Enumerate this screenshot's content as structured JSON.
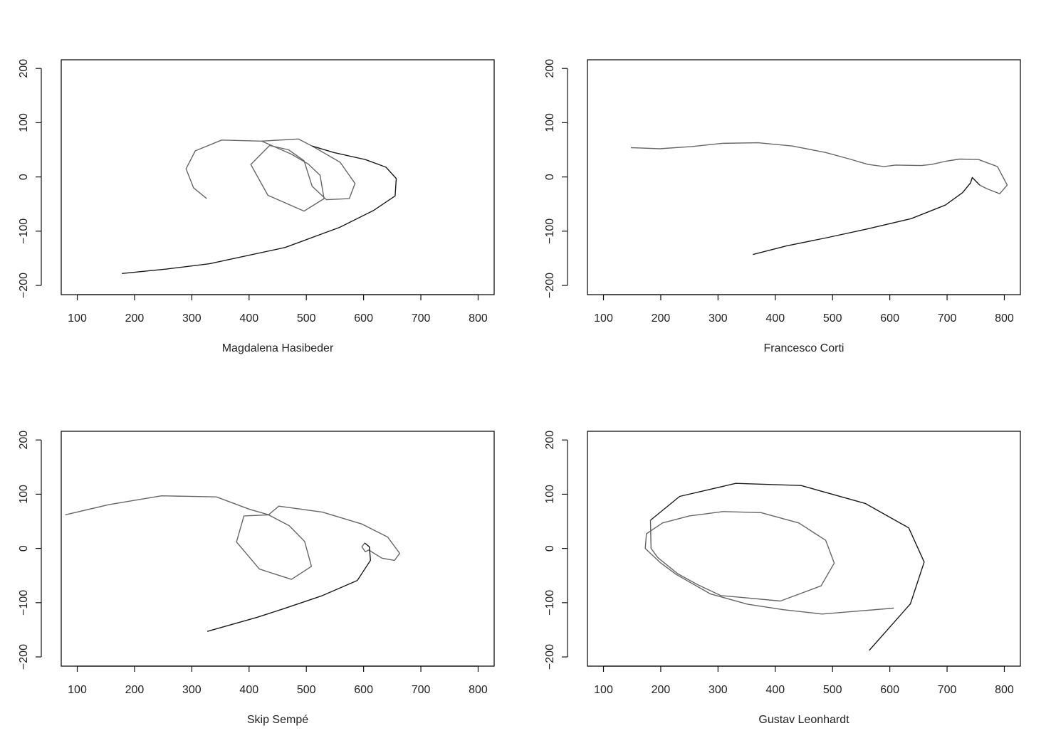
{
  "chart_data": [
    {
      "type": "line",
      "xlabel": "Magdalena Hasibeder",
      "xlim": [
        72,
        828
      ],
      "ylim": [
        -217,
        216
      ],
      "xticks": [
        100,
        200,
        300,
        400,
        500,
        600,
        700,
        800
      ],
      "yticks": [
        -200,
        -100,
        0,
        100,
        200
      ],
      "grid": false,
      "series": [
        {
          "color": "#666666",
          "points": [
            [
              326,
              -40
            ],
            [
              303,
              -20
            ],
            [
              290,
              15
            ],
            [
              306,
              48
            ],
            [
              352,
              68
            ],
            [
              422,
              66
            ],
            [
              486,
              70
            ],
            [
              510,
              57
            ],
            [
              559,
              27
            ],
            [
              585,
              -12
            ],
            [
              575,
              -40
            ],
            [
              535,
              -42
            ],
            [
              510,
              -17
            ],
            [
              496,
              30
            ],
            [
              469,
              50
            ],
            [
              436,
              58
            ],
            [
              403,
              23
            ],
            [
              433,
              -34
            ],
            [
              496,
              -63
            ],
            [
              531,
              -40
            ],
            [
              524,
              3
            ],
            [
              503,
              24
            ],
            [
              474,
              42
            ],
            [
              422,
              66
            ]
          ]
        },
        {
          "color": "#1a1a1a",
          "points": [
            [
              510,
              57
            ],
            [
              548,
              45
            ],
            [
              603,
              32
            ],
            [
              639,
              18
            ],
            [
              657,
              -3
            ],
            [
              655,
              -35
            ],
            [
              617,
              -62
            ],
            [
              558,
              -93
            ],
            [
              463,
              -130
            ],
            [
              331,
              -160
            ],
            [
              254,
              -170
            ],
            [
              178,
              -178
            ]
          ]
        }
      ]
    },
    {
      "type": "line",
      "xlabel": "Francesco Corti",
      "xlim": [
        72,
        828
      ],
      "ylim": [
        -217,
        216
      ],
      "xticks": [
        100,
        200,
        300,
        400,
        500,
        600,
        700,
        800
      ],
      "yticks": [
        -200,
        -100,
        0,
        100,
        200
      ],
      "grid": false,
      "series": [
        {
          "color": "#666666",
          "points": [
            [
              148,
              54
            ],
            [
              198,
              52
            ],
            [
              254,
              56
            ],
            [
              307,
              62
            ],
            [
              370,
              63
            ],
            [
              430,
              57
            ],
            [
              488,
              45
            ],
            [
              530,
              33
            ],
            [
              562,
              23
            ],
            [
              590,
              19
            ],
            [
              610,
              22
            ],
            [
              655,
              21
            ],
            [
              673,
              23
            ],
            [
              698,
              29
            ],
            [
              722,
              33
            ],
            [
              755,
              32
            ],
            [
              788,
              19
            ],
            [
              805,
              -15
            ],
            [
              792,
              -31
            ],
            [
              770,
              -22
            ],
            [
              757,
              -15
            ]
          ]
        },
        {
          "color": "#1a1a1a",
          "points": [
            [
              757,
              -15
            ],
            [
              744,
              -1
            ],
            [
              741,
              -11
            ],
            [
              727,
              -29
            ],
            [
              697,
              -52
            ],
            [
              637,
              -77
            ],
            [
              560,
              -96
            ],
            [
              490,
              -112
            ],
            [
              420,
              -127
            ],
            [
              361,
              -143
            ]
          ]
        }
      ]
    },
    {
      "type": "line",
      "xlabel": "Skip Sempé",
      "xlim": [
        72,
        828
      ],
      "ylim": [
        -217,
        216
      ],
      "xticks": [
        100,
        200,
        300,
        400,
        500,
        600,
        700,
        800
      ],
      "yticks": [
        -200,
        -100,
        0,
        100,
        200
      ],
      "grid": false,
      "series": [
        {
          "color": "#666666",
          "points": [
            [
              79,
              62
            ],
            [
              156,
              81
            ],
            [
              247,
              97
            ],
            [
              343,
              95
            ],
            [
              401,
              72
            ],
            [
              435,
              62
            ],
            [
              391,
              60
            ],
            [
              378,
              12
            ],
            [
              418,
              -38
            ],
            [
              474,
              -57
            ],
            [
              509,
              -33
            ],
            [
              497,
              13
            ],
            [
              470,
              42
            ],
            [
              434,
              62
            ],
            [
              452,
              78
            ],
            [
              528,
              67
            ],
            [
              597,
              45
            ],
            [
              642,
              21
            ],
            [
              663,
              -9
            ],
            [
              654,
              -22
            ],
            [
              632,
              -18
            ],
            [
              609,
              -3
            ],
            [
              603,
              -6
            ],
            [
              597,
              3
            ],
            [
              602,
              10
            ]
          ]
        },
        {
          "color": "#1a1a1a",
          "points": [
            [
              602,
              10
            ],
            [
              610,
              3
            ],
            [
              612,
              -22
            ],
            [
              589,
              -59
            ],
            [
              528,
              -87
            ],
            [
              461,
              -111
            ],
            [
              414,
              -127
            ],
            [
              327,
              -153
            ]
          ]
        }
      ]
    },
    {
      "type": "line",
      "xlabel": "Gustav Leonhardt",
      "xlim": [
        72,
        828
      ],
      "ylim": [
        -217,
        216
      ],
      "xticks": [
        100,
        200,
        300,
        400,
        500,
        600,
        700,
        800
      ],
      "yticks": [
        -200,
        -100,
        0,
        100,
        200
      ],
      "grid": false,
      "series": [
        {
          "color": "#666666",
          "points": [
            [
              607,
              -110
            ],
            [
              549,
              -115
            ],
            [
              482,
              -121
            ],
            [
              414,
              -113
            ],
            [
              352,
              -103
            ],
            [
              287,
              -84
            ],
            [
              227,
              -48
            ],
            [
              199,
              -26
            ],
            [
              173,
              0
            ],
            [
              175,
              27
            ],
            [
              203,
              47
            ],
            [
              250,
              60
            ],
            [
              309,
              68
            ],
            [
              375,
              66
            ],
            [
              441,
              47
            ],
            [
              488,
              15
            ],
            [
              503,
              -27
            ],
            [
              480,
              -69
            ],
            [
              409,
              -97
            ],
            [
              338,
              -90
            ],
            [
              305,
              -87
            ],
            [
              265,
              -67
            ],
            [
              230,
              -47
            ],
            [
              195,
              -17
            ],
            [
              183,
              0
            ],
            [
              182,
              52
            ]
          ]
        },
        {
          "color": "#1a1a1a",
          "points": [
            [
              182,
              52
            ],
            [
              233,
              96
            ],
            [
              331,
              120
            ],
            [
              445,
              116
            ],
            [
              557,
              83
            ],
            [
              633,
              38
            ],
            [
              660,
              -25
            ],
            [
              636,
              -102
            ],
            [
              564,
              -188
            ]
          ]
        }
      ]
    }
  ]
}
